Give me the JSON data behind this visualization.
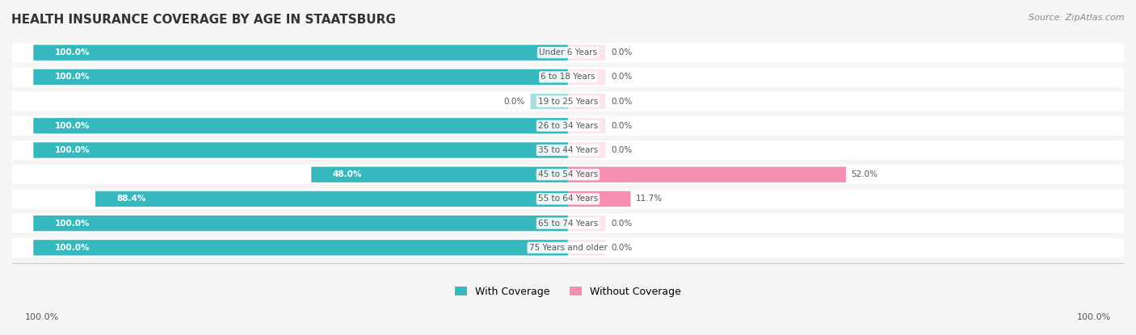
{
  "title": "HEALTH INSURANCE COVERAGE BY AGE IN STAATSBURG",
  "source": "Source: ZipAtlas.com",
  "categories": [
    "Under 6 Years",
    "6 to 18 Years",
    "19 to 25 Years",
    "26 to 34 Years",
    "35 to 44 Years",
    "45 to 54 Years",
    "55 to 64 Years",
    "65 to 74 Years",
    "75 Years and older"
  ],
  "with_coverage": [
    100.0,
    100.0,
    0.0,
    100.0,
    100.0,
    48.0,
    88.4,
    100.0,
    100.0
  ],
  "without_coverage": [
    0.0,
    0.0,
    0.0,
    0.0,
    0.0,
    52.0,
    11.7,
    0.0,
    0.0
  ],
  "color_with": "#35b8be",
  "color_without": "#f48fb1",
  "color_with_light": "#a8dde0",
  "color_without_light": "#fce4ec",
  "bg_color": "#f5f5f5",
  "bar_bg_color": "#ffffff",
  "title_color": "#333333",
  "label_color": "#555555",
  "legend_label_with": "With Coverage",
  "legend_label_without": "Without Coverage",
  "x_axis_labels": [
    "100.0%",
    "100.0%"
  ],
  "figsize": [
    14.06,
    4.15
  ],
  "dpi": 100
}
